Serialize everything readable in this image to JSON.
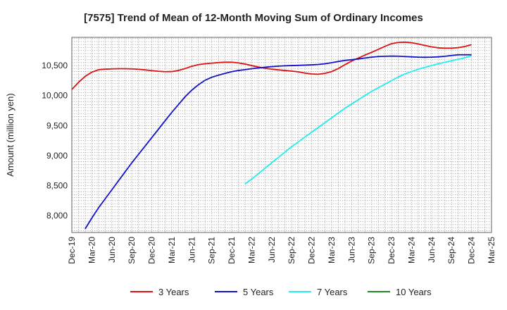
{
  "chart_data": {
    "type": "line",
    "title": "[7575]  Trend of Mean of 12-Month Moving Sum of Ordinary Incomes",
    "xlabel": "",
    "ylabel": "Amount (million yen)",
    "ylim": [
      7720,
      10970
    ],
    "y_ticks": [
      8000,
      8500,
      9000,
      9500,
      10000,
      10500
    ],
    "y_tick_labels": [
      "8,000",
      "8,500",
      "9,000",
      "9,500",
      "10,000",
      "10,500"
    ],
    "x_tick_labels": [
      "Dec-19",
      "Mar-20",
      "Jun-20",
      "Sep-20",
      "Dec-20",
      "Mar-21",
      "Jun-21",
      "Sep-21",
      "Dec-21",
      "Mar-22",
      "Jun-22",
      "Sep-22",
      "Dec-22",
      "Mar-23",
      "Jun-23",
      "Sep-23",
      "Dec-23",
      "Mar-24",
      "Jun-24",
      "Sep-24",
      "Dec-24",
      "Mar-25"
    ],
    "x_range_months": [
      0,
      63
    ],
    "grid": true,
    "legend_position": "bottom",
    "series": [
      {
        "name": "3 Years",
        "color": "#dd1111",
        "x": [
          0,
          1,
          2,
          3,
          4,
          5,
          6,
          7,
          8,
          9,
          10,
          11,
          12,
          13,
          14,
          15,
          16,
          17,
          18,
          19,
          20,
          21,
          22,
          23,
          24,
          25,
          26,
          27,
          28,
          29,
          30,
          31,
          32,
          33,
          34,
          35,
          36,
          37,
          38,
          39,
          40,
          41,
          42,
          43,
          44,
          45,
          46,
          47,
          48,
          49,
          50,
          51,
          52,
          53,
          54,
          55,
          56,
          57,
          58,
          59,
          60
        ],
        "values": [
          10100,
          10220,
          10320,
          10390,
          10430,
          10440,
          10445,
          10448,
          10448,
          10445,
          10438,
          10428,
          10416,
          10405,
          10398,
          10400,
          10418,
          10450,
          10488,
          10515,
          10530,
          10540,
          10550,
          10556,
          10556,
          10545,
          10525,
          10500,
          10475,
          10455,
          10440,
          10428,
          10418,
          10408,
          10395,
          10375,
          10360,
          10355,
          10370,
          10400,
          10450,
          10515,
          10575,
          10625,
          10675,
          10720,
          10770,
          10820,
          10865,
          10885,
          10890,
          10880,
          10860,
          10835,
          10812,
          10795,
          10790,
          10790,
          10798,
          10818,
          10848
        ]
      },
      {
        "name": "5 Years",
        "color": "#1111cc",
        "x": [
          2,
          3,
          4,
          5,
          6,
          7,
          8,
          9,
          10,
          11,
          12,
          13,
          14,
          15,
          16,
          17,
          18,
          19,
          20,
          21,
          22,
          23,
          24,
          25,
          26,
          27,
          28,
          29,
          30,
          31,
          32,
          33,
          34,
          35,
          36,
          37,
          38,
          39,
          40,
          41,
          42,
          43,
          44,
          45,
          46,
          47,
          48,
          49,
          50,
          51,
          52,
          53,
          54,
          55,
          56,
          57,
          58,
          59,
          60
        ],
        "values": [
          7780,
          7960,
          8130,
          8280,
          8430,
          8580,
          8730,
          8880,
          9020,
          9160,
          9300,
          9440,
          9580,
          9720,
          9850,
          9980,
          10090,
          10180,
          10255,
          10305,
          10340,
          10370,
          10398,
          10418,
          10432,
          10448,
          10460,
          10472,
          10482,
          10490,
          10496,
          10500,
          10503,
          10507,
          10512,
          10518,
          10530,
          10548,
          10568,
          10585,
          10598,
          10610,
          10625,
          10640,
          10650,
          10655,
          10658,
          10656,
          10650,
          10645,
          10640,
          10638,
          10640,
          10645,
          10655,
          10668,
          10680,
          10680,
          10680
        ]
      },
      {
        "name": "7 Years",
        "color": "#22eeee",
        "x": [
          26,
          27,
          28,
          29,
          30,
          31,
          32,
          33,
          34,
          35,
          36,
          37,
          38,
          39,
          40,
          41,
          42,
          43,
          44,
          45,
          46,
          47,
          48,
          49,
          50,
          51,
          52,
          53,
          54,
          55,
          56,
          57,
          58,
          59,
          60
        ],
        "values": [
          8530,
          8610,
          8700,
          8790,
          8880,
          8970,
          9060,
          9150,
          9230,
          9310,
          9390,
          9470,
          9550,
          9630,
          9710,
          9790,
          9860,
          9930,
          10000,
          10070,
          10130,
          10190,
          10250,
          10310,
          10360,
          10400,
          10440,
          10470,
          10500,
          10530,
          10555,
          10580,
          10605,
          10630,
          10660
        ]
      },
      {
        "name": "10 Years",
        "color": "#228822",
        "x": [],
        "values": []
      }
    ]
  }
}
